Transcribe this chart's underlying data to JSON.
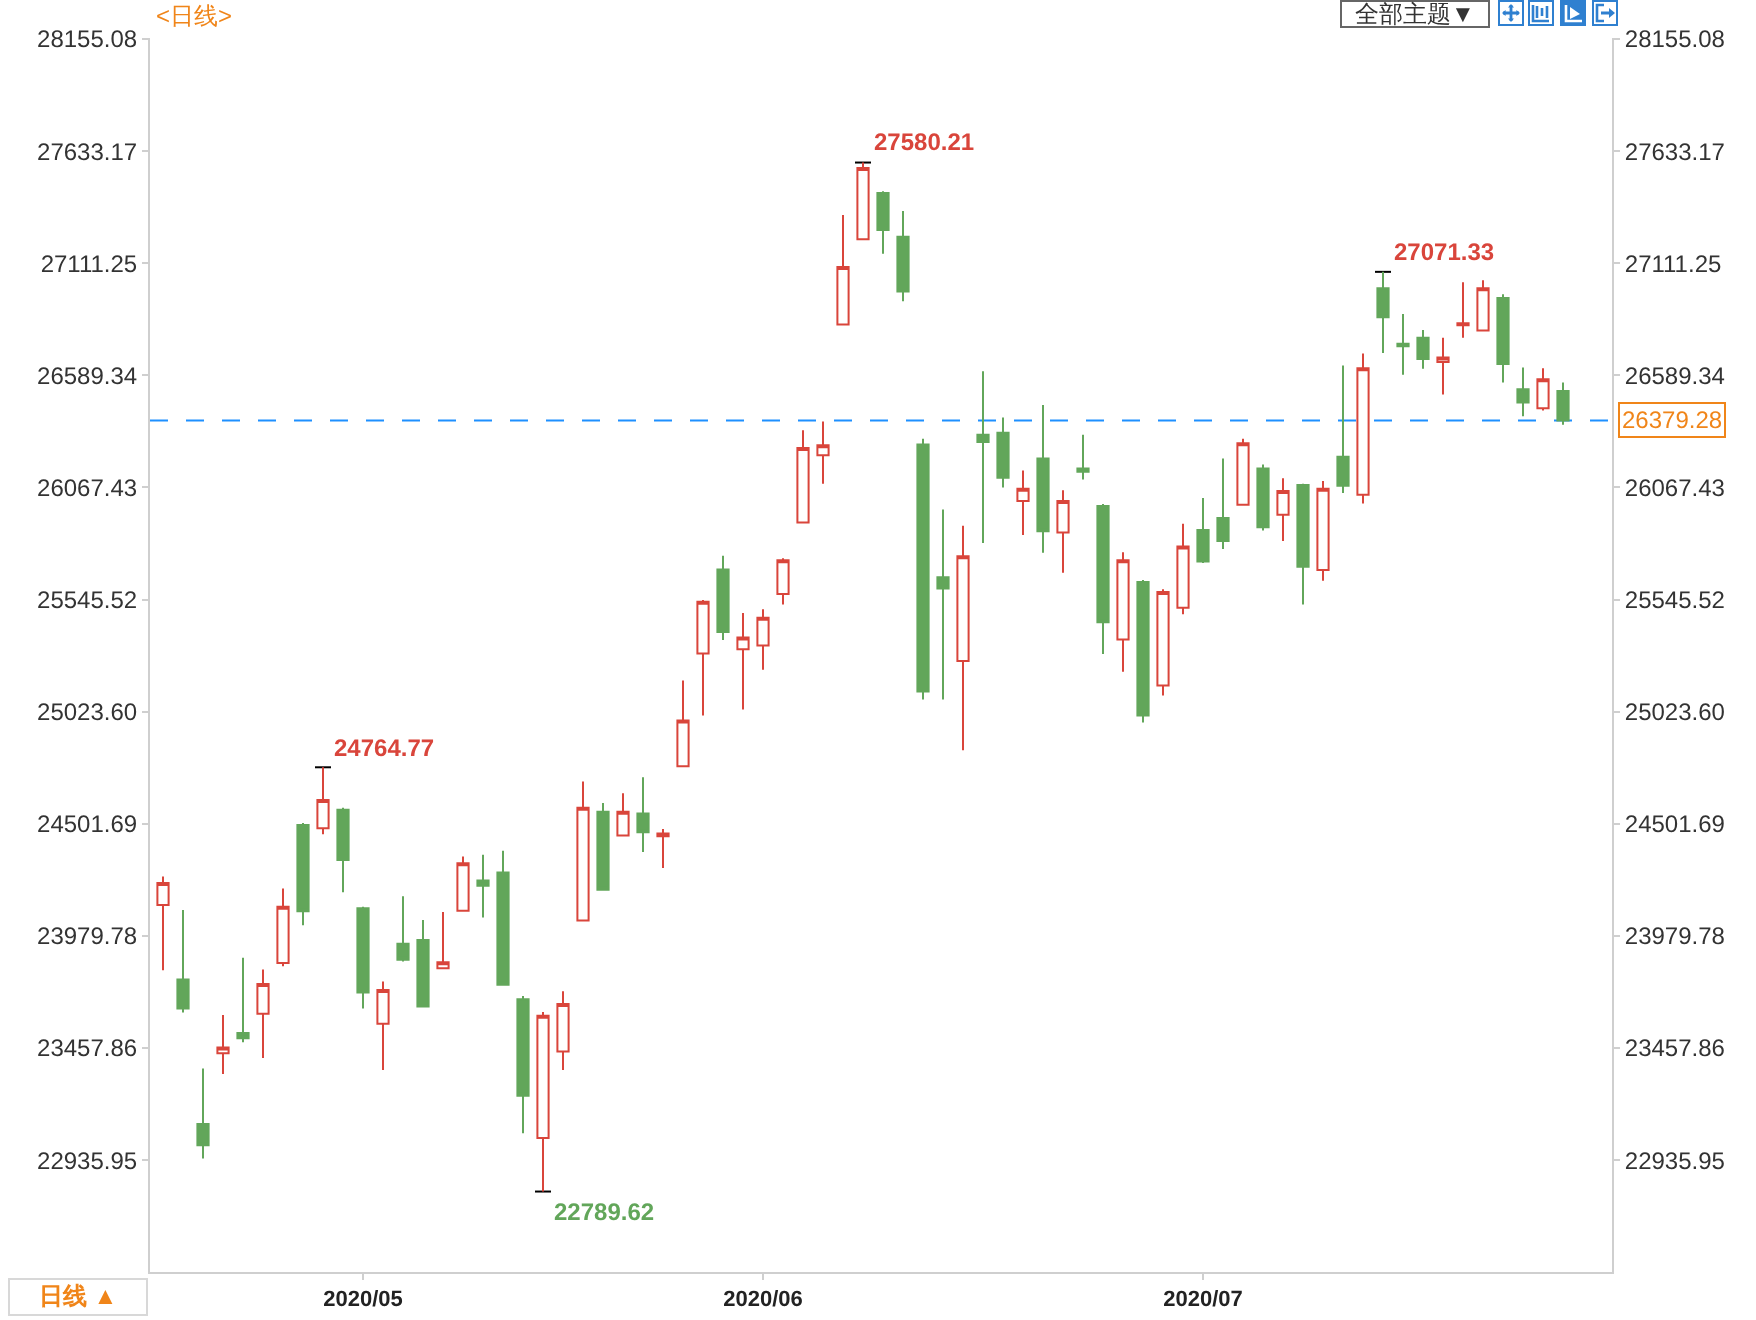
{
  "chart_data": {
    "type": "candlestick",
    "title": "<日线>",
    "categories": [
      null,
      null,
      null,
      null,
      null,
      null,
      null,
      null,
      null,
      null,
      "2020/05",
      null,
      null,
      null,
      null,
      null,
      null,
      null,
      null,
      null,
      null,
      null,
      null,
      null,
      null,
      null,
      null,
      null,
      null,
      null,
      "2020/06",
      null,
      null,
      null,
      null,
      null,
      null,
      null,
      null,
      null,
      null,
      null,
      null,
      null,
      null,
      null,
      null,
      null,
      null,
      null,
      null,
      null,
      "2020/07",
      null,
      null,
      null,
      null,
      null,
      null,
      null,
      null,
      null,
      null,
      null,
      null,
      null,
      null,
      null,
      null,
      null,
      null
    ],
    "ohlc": [
      [
        24124,
        24256,
        23820,
        24226
      ],
      [
        23777,
        24100,
        23623,
        23642
      ],
      [
        23104,
        23362,
        22944,
        23005
      ],
      [
        23433,
        23611,
        23337,
        23460
      ],
      [
        23528,
        23878,
        23485,
        23503
      ],
      [
        23617,
        23823,
        23411,
        23756
      ],
      [
        23854,
        24201,
        23838,
        24115
      ],
      [
        24496,
        24505,
        24029,
        24094
      ],
      [
        24481,
        24764.77,
        24453,
        24613
      ],
      [
        24567,
        24576,
        24183,
        24333
      ],
      [
        24109,
        24115,
        23642,
        23716
      ],
      [
        23571,
        23768,
        23356,
        23728
      ],
      [
        23943,
        24164,
        23860,
        23869
      ],
      [
        23961,
        24054,
        23651,
        23651
      ],
      [
        23829,
        24091,
        23829,
        23857
      ],
      [
        24097,
        24349,
        24097,
        24318
      ],
      [
        24238,
        24358,
        24066,
        24213
      ],
      [
        24275,
        24376,
        23752,
        23752
      ],
      [
        23685,
        23700,
        23061,
        23236
      ],
      [
        23039,
        23626,
        22789.62,
        23608
      ],
      [
        23442,
        23722,
        23356,
        23663
      ],
      [
        24051,
        24699,
        24051,
        24576
      ],
      [
        24558,
        24598,
        24195,
        24195
      ],
      [
        24447,
        24644,
        24447,
        24558
      ],
      [
        24549,
        24718,
        24370,
        24462
      ],
      [
        24444,
        24478,
        24296,
        24456
      ],
      [
        24770,
        25169,
        24770,
        24982
      ],
      [
        25295,
        25544,
        25006,
        25535
      ],
      [
        25686,
        25750,
        25357,
        25394
      ],
      [
        25314,
        25483,
        25034,
        25369
      ],
      [
        25332,
        25501,
        25219,
        25461
      ],
      [
        25572,
        25738,
        25523,
        25729
      ],
      [
        25904,
        26334,
        25904,
        26251
      ],
      [
        26217,
        26374,
        26085,
        26264
      ],
      [
        26826,
        27336,
        26826,
        27094
      ],
      [
        27223,
        27580.21,
        27223,
        27555
      ],
      [
        27438,
        27447,
        27155,
        27266
      ],
      [
        27235,
        27355,
        26934,
        26980
      ],
      [
        26267,
        26294,
        25080,
        25117
      ],
      [
        25649,
        25965,
        25080,
        25597
      ],
      [
        25259,
        25889,
        24844,
        25747
      ],
      [
        26313,
        26608,
        25809,
        26279
      ],
      [
        26322,
        26393,
        26067,
        26113
      ],
      [
        26005,
        26147,
        25846,
        26061
      ],
      [
        26202,
        26451,
        25763,
        25864
      ],
      [
        25858,
        26055,
        25670,
        26005
      ],
      [
        26156,
        26313,
        26104,
        26141
      ],
      [
        25981,
        25990,
        25292,
        25440
      ],
      [
        25360,
        25766,
        25209,
        25729
      ],
      [
        25627,
        25637,
        24973,
        25006
      ],
      [
        25145,
        25594,
        25099,
        25581
      ],
      [
        25507,
        25898,
        25477,
        25793
      ],
      [
        25870,
        26018,
        25716,
        25723
      ],
      [
        25925,
        26202,
        25781,
        25818
      ],
      [
        25987,
        26294,
        25987,
        26273
      ],
      [
        26156,
        26174,
        25867,
        25882
      ],
      [
        25941,
        26110,
        25818,
        26051
      ],
      [
        26079,
        26085,
        25523,
        25698
      ],
      [
        25683,
        26098,
        25633,
        26061
      ],
      [
        26211,
        26635,
        26042,
        26076
      ],
      [
        26033,
        26691,
        25993,
        26623
      ],
      [
        26995,
        27071.33,
        26694,
        26860
      ],
      [
        26737,
        26875,
        26592,
        26725
      ],
      [
        26765,
        26801,
        26620,
        26666
      ],
      [
        26651,
        26765,
        26500,
        26672
      ],
      [
        26823,
        27023,
        26765,
        26832
      ],
      [
        26798,
        27032,
        26798,
        26995
      ],
      [
        26949,
        26967,
        26556,
        26642
      ],
      [
        26525,
        26626,
        26399,
        26463
      ],
      [
        26436,
        26623,
        26426,
        26571
      ],
      [
        26516,
        26556,
        26359,
        26379.28
      ]
    ],
    "colors": [
      "#d9453b",
      "#62a65a",
      "#62a65a",
      "#d9453b",
      "#62a65a",
      "#d9453b",
      "#d9453b",
      "#62a65a",
      "#d9453b",
      "#62a65a",
      "#62a65a",
      "#d9453b",
      "#62a65a",
      "#62a65a",
      "#d9453b",
      "#d9453b",
      "#62a65a",
      "#62a65a",
      "#62a65a",
      "#d9453b",
      "#d9453b",
      "#d9453b",
      "#62a65a",
      "#d9453b",
      "#62a65a",
      "#d9453b",
      "#d9453b",
      "#d9453b",
      "#62a65a",
      "#d9453b",
      "#d9453b",
      "#d9453b",
      "#d9453b",
      "#d9453b",
      "#d9453b",
      "#d9453b",
      "#62a65a",
      "#62a65a",
      "#62a65a",
      "#62a65a",
      "#d9453b",
      "#62a65a",
      "#62a65a",
      "#d9453b",
      "#62a65a",
      "#d9453b",
      "#62a65a",
      "#62a65a",
      "#d9453b",
      "#62a65a",
      "#d9453b",
      "#d9453b",
      "#62a65a",
      "#62a65a",
      "#d9453b",
      "#62a65a",
      "#d9453b",
      "#62a65a",
      "#d9453b",
      "#62a65a",
      "#d9453b",
      "#62a65a",
      "#62a65a",
      "#62a65a",
      "#d9453b",
      "#d9453b",
      "#d9453b",
      "#62a65a",
      "#62a65a",
      "#d9453b",
      "#62a65a"
    ],
    "ylim": [
      22415,
      28160
    ],
    "yticks": [
      22935.95,
      23457.86,
      23979.78,
      24501.69,
      {
        "value": 25023.6,
        "label": "25023.60"
      },
      25545.52,
      26067.43,
      26589.34,
      27111.25,
      27633.17,
      28155.08
    ],
    "y2lim": [
      22415,
      28160
    ],
    "y2ticks": [
      22935.95,
      23457.86,
      23979.78,
      24501.69,
      {
        "value": 25023.6,
        "label": "25023.60"
      },
      25545.52,
      26067.43,
      26589.34,
      27111.25,
      27633.17,
      28155.08
    ],
    "ref_lines": [
      {
        "axis": "y",
        "value": 26379.28,
        "label": "26379.28",
        "color": "#1e90ff",
        "line_style": "dashed"
      }
    ],
    "annotations": [
      "全部主题▼",
      "日线 ▲",
      "27580.21",
      "27071.33",
      "24764.77",
      "22789.62"
    ]
  }
}
